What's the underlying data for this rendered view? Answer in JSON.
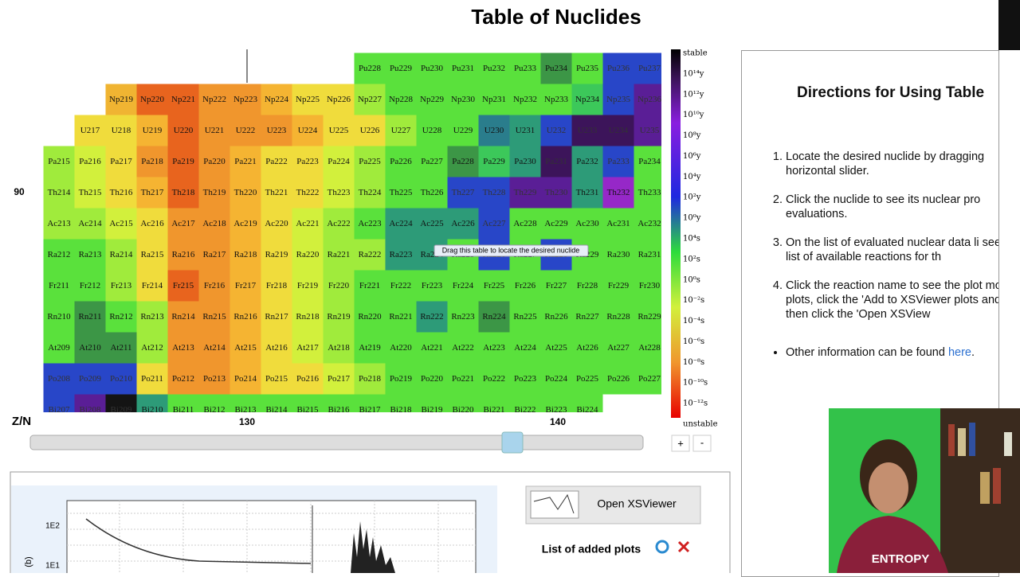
{
  "header": {
    "title": "Table of Nuclides"
  },
  "table": {
    "rows": [
      {
        "labels": [
          "Pu228",
          "Pu229",
          "Pu230",
          "Pu231",
          "Pu232",
          "Pu233",
          "Pu234",
          "Pu235",
          "Pu236",
          "Pu237"
        ],
        "colors": [
          "#5ae13c",
          "#5ae13c",
          "#5ae13c",
          "#5ae13c",
          "#5ae13c",
          "#5ae13c",
          "#3c9646",
          "#5ae13c",
          "#2846c8",
          "#2846c8"
        ]
      },
      {
        "labels": [
          "Np219",
          "Np220",
          "Np221",
          "Np222",
          "Np223",
          "Np224",
          "Np225",
          "Np226",
          "Np227",
          "Np228",
          "Np229",
          "Np230",
          "Np231",
          "Np232",
          "Np233",
          "Np234",
          "Np235",
          "Np236"
        ],
        "colors": [
          "#f0b432",
          "#e8641e",
          "#e8641e",
          "#f0962d",
          "#f0962d",
          "#f5b432",
          "#f0dc3c",
          "#f0dc3c",
          "#a0eb3c",
          "#5ae13c",
          "#5ae13c",
          "#5ae13c",
          "#5ae13c",
          "#5ae13c",
          "#5ae13c",
          "#3cc85a",
          "#2846c8",
          "#5a1e96"
        ]
      },
      {
        "labels": [
          "U217",
          "U218",
          "U219",
          "U220",
          "U221",
          "U222",
          "U223",
          "U224",
          "U225",
          "U226",
          "U227",
          "U228",
          "U229",
          "U230",
          "U231",
          "U232",
          "U233",
          "U234",
          "U235"
        ],
        "colors": [
          "#f0dc3c",
          "#f0dc3c",
          "#f5b432",
          "#e8641e",
          "#f0962d",
          "#f0962d",
          "#f0962d",
          "#f5b432",
          "#f0dc3c",
          "#f0dc3c",
          "#a0eb3c",
          "#5ae13c",
          "#5ae13c",
          "#2a7d8c",
          "#2d9b78",
          "#2846c8",
          "#3c145a",
          "#3c145a",
          "#5a1e96"
        ]
      },
      {
        "labels": [
          "Pa215",
          "Pa216",
          "Pa217",
          "Pa218",
          "Pa219",
          "Pa220",
          "Pa221",
          "Pa222",
          "Pa223",
          "Pa224",
          "Pa225",
          "Pa226",
          "Pa227",
          "Pa228",
          "Pa229",
          "Pa230",
          "Pa231",
          "Pa232",
          "Pa233",
          "Pa234"
        ],
        "colors": [
          "#a0eb3c",
          "#d2f03c",
          "#f0dc3c",
          "#f0962d",
          "#e8641e",
          "#f0962d",
          "#f5b432",
          "#f0dc3c",
          "#f0dc3c",
          "#d2f03c",
          "#a0eb3c",
          "#5ae13c",
          "#5ae13c",
          "#3c9646",
          "#3cc85a",
          "#2d9b78",
          "#3c145a",
          "#2d9b78",
          "#2846c8",
          "#5ae13c"
        ]
      },
      {
        "labels": [
          "Th214",
          "Th215",
          "Th216",
          "Th217",
          "Th218",
          "Th219",
          "Th220",
          "Th221",
          "Th222",
          "Th223",
          "Th224",
          "Th225",
          "Th226",
          "Th227",
          "Th228",
          "Th229",
          "Th230",
          "Th231",
          "Th232",
          "Th233"
        ],
        "colors": [
          "#a0eb3c",
          "#d2f03c",
          "#f0dc3c",
          "#f5b432",
          "#e8641e",
          "#f0962d",
          "#f5b432",
          "#f0dc3c",
          "#f0dc3c",
          "#d2f03c",
          "#a0eb3c",
          "#5ae13c",
          "#5ae13c",
          "#2846c8",
          "#2846c8",
          "#5a1e96",
          "#5a1e96",
          "#2d9b78",
          "#9628c8",
          "#5ae13c"
        ]
      },
      {
        "labels": [
          "Ac213",
          "Ac214",
          "Ac215",
          "Ac216",
          "Ac217",
          "Ac218",
          "Ac219",
          "Ac220",
          "Ac221",
          "Ac222",
          "Ac223",
          "Ac224",
          "Ac225",
          "Ac226",
          "Ac227",
          "Ac228",
          "Ac229",
          "Ac230",
          "Ac231",
          "Ac232"
        ],
        "colors": [
          "#a0eb3c",
          "#a0eb3c",
          "#d2f03c",
          "#f0dc3c",
          "#f0962d",
          "#f0962d",
          "#f5b432",
          "#f0dc3c",
          "#d2f03c",
          "#a0eb3c",
          "#5ae13c",
          "#2d9b78",
          "#2d9b78",
          "#2d9b78",
          "#2846c8",
          "#5ae13c",
          "#5ae13c",
          "#5ae13c",
          "#5ae13c",
          "#5ae13c"
        ]
      },
      {
        "labels": [
          "Ra212",
          "Ra213",
          "Ra214",
          "Ra215",
          "Ra216",
          "Ra217",
          "Ra218",
          "Ra219",
          "Ra220",
          "Ra221",
          "Ra222",
          "Ra223",
          "Ra224",
          "Ra225",
          "Ra226",
          "Ra227",
          "Ra228",
          "Ra229",
          "Ra230",
          "Ra231"
        ],
        "colors": [
          "#5ae13c",
          "#5ae13c",
          "#a0eb3c",
          "#f0dc3c",
          "#f0962d",
          "#f0962d",
          "#f5b432",
          "#f0dc3c",
          "#d2f03c",
          "#a0eb3c",
          "#a0eb3c",
          "#2d9b78",
          "#2d9b78",
          "#5ae13c",
          "#2846c8",
          "#5ae13c",
          "#2846c8",
          "#5ae13c",
          "#5ae13c",
          "#5ae13c"
        ]
      },
      {
        "labels": [
          "Fr211",
          "Fr212",
          "Fr213",
          "Fr214",
          "Fr215",
          "Fr216",
          "Fr217",
          "Fr218",
          "Fr219",
          "Fr220",
          "Fr221",
          "Fr222",
          "Fr223",
          "Fr224",
          "Fr225",
          "Fr226",
          "Fr227",
          "Fr228",
          "Fr229",
          "Fr230"
        ],
        "colors": [
          "#5ae13c",
          "#5ae13c",
          "#a0eb3c",
          "#f0dc3c",
          "#e8641e",
          "#f0962d",
          "#f5b432",
          "#f0dc3c",
          "#d2f03c",
          "#a0eb3c",
          "#5ae13c",
          "#5ae13c",
          "#5ae13c",
          "#5ae13c",
          "#5ae13c",
          "#5ae13c",
          "#5ae13c",
          "#5ae13c",
          "#5ae13c",
          "#5ae13c"
        ]
      },
      {
        "labels": [
          "Rn210",
          "Rn211",
          "Rn212",
          "Rn213",
          "Rn214",
          "Rn215",
          "Rn216",
          "Rn217",
          "Rn218",
          "Rn219",
          "Rn220",
          "Rn221",
          "Rn222",
          "Rn223",
          "Rn224",
          "Rn225",
          "Rn226",
          "Rn227",
          "Rn228",
          "Rn229"
        ],
        "colors": [
          "#5ae13c",
          "#3c9646",
          "#5ae13c",
          "#a0eb3c",
          "#f0962d",
          "#f0962d",
          "#f5b432",
          "#f0dc3c",
          "#d2f03c",
          "#a0eb3c",
          "#5ae13c",
          "#5ae13c",
          "#2d9b78",
          "#5ae13c",
          "#3c9646",
          "#5ae13c",
          "#5ae13c",
          "#5ae13c",
          "#5ae13c",
          "#5ae13c"
        ]
      },
      {
        "labels": [
          "At209",
          "At210",
          "At211",
          "At212",
          "At213",
          "At214",
          "At215",
          "At216",
          "At217",
          "At218",
          "At219",
          "At220",
          "At221",
          "At222",
          "At223",
          "At224",
          "At225",
          "At226",
          "At227",
          "At228"
        ],
        "colors": [
          "#5ae13c",
          "#3c9646",
          "#3c9646",
          "#a0eb3c",
          "#f0962d",
          "#f0962d",
          "#f5b432",
          "#f0dc3c",
          "#d2f03c",
          "#a0eb3c",
          "#5ae13c",
          "#5ae13c",
          "#5ae13c",
          "#5ae13c",
          "#5ae13c",
          "#5ae13c",
          "#5ae13c",
          "#5ae13c",
          "#5ae13c",
          "#5ae13c"
        ]
      },
      {
        "labels": [
          "Po208",
          "Po209",
          "Po210",
          "Po211",
          "Po212",
          "Po213",
          "Po214",
          "Po215",
          "Po216",
          "Po217",
          "Po218",
          "Po219",
          "Po220",
          "Po221",
          "Po222",
          "Po223",
          "Po224",
          "Po225",
          "Po226",
          "Po227"
        ],
        "colors": [
          "#2846c8",
          "#2846c8",
          "#2846c8",
          "#f0dc3c",
          "#f0962d",
          "#f0962d",
          "#f5b432",
          "#f0dc3c",
          "#f0dc3c",
          "#d2f03c",
          "#a0eb3c",
          "#5ae13c",
          "#5ae13c",
          "#5ae13c",
          "#5ae13c",
          "#5ae13c",
          "#5ae13c",
          "#5ae13c",
          "#5ae13c",
          "#5ae13c"
        ]
      },
      {
        "labels": [
          "Bi207",
          "Bi208",
          "Bi209",
          "Bi210",
          "Bi211",
          "Bi212",
          "Bi213",
          "Bi214",
          "Bi215",
          "Bi216",
          "Bi217",
          "Bi218",
          "Bi219",
          "Bi220",
          "Bi221",
          "Bi222",
          "Bi223",
          "Bi224"
        ],
        "colors": [
          "#2846c8",
          "#5a1e96",
          "#141414",
          "#2d9b78",
          "#5ae13c",
          "#5ae13c",
          "#5ae13c",
          "#5ae13c",
          "#5ae13c",
          "#5ae13c",
          "#5ae13c",
          "#5ae13c",
          "#5ae13c",
          "#5ae13c",
          "#5ae13c",
          "#5ae13c",
          "#5ae13c",
          "#5ae13c"
        ]
      }
    ],
    "z_label": "90",
    "axis_label": "Z/N",
    "n_labels": [
      "130",
      "140"
    ],
    "tooltip": "Drag this table to locate the desired nuclide"
  },
  "legend": {
    "labels": [
      "stable",
      "10¹⁴y",
      "10¹²y",
      "10¹⁰y",
      "10⁸y",
      "10⁶y",
      "10⁴y",
      "10²y",
      "10⁰y",
      "10⁴s",
      "10²s",
      "10⁰s",
      "10⁻²s",
      "10⁻⁴s",
      "10⁻⁶s",
      "10⁻⁸s",
      "10⁻¹⁰s",
      "10⁻¹²s",
      "unstable"
    ]
  },
  "controls": {
    "plus": "+",
    "minus": "-"
  },
  "directions": {
    "title": "Directions for Using Table",
    "steps": [
      "Locate the desired nuclide by dragging horizontal slider.",
      "Click the nuclide to see its nuclear pro evaluations.",
      "On the list of evaluated nuclear data li see the list of available reactions for th",
      "Click the reaction name to see the plot more plots, click the 'Add to XSViewer plots and then click the 'Open XSView"
    ],
    "other": "Other information can be found ",
    "link": "here",
    "end": "."
  },
  "plot": {
    "yticks": [
      "1E2",
      "1E1"
    ],
    "ylabel": "(b)"
  },
  "viewer": {
    "button": "Open XSViewer",
    "list_title": "List of added plots"
  },
  "webcam": {
    "shirt": "ENTROPY"
  }
}
